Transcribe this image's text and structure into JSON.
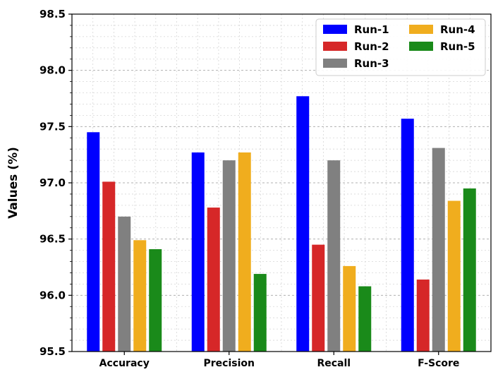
{
  "chart_data": {
    "type": "bar",
    "title": "",
    "xlabel": "",
    "ylabel": "Values (%)",
    "ylim": [
      95.5,
      98.5
    ],
    "yticks": [
      "95.5",
      "96.0",
      "96.5",
      "97.0",
      "97.5",
      "98.0",
      "98.5"
    ],
    "grid": true,
    "legend_position": "top-right",
    "categories": [
      "Accuracy",
      "Precision",
      "Recall",
      "F-Score"
    ],
    "series": [
      {
        "name": "Run-1",
        "color": "#0000ff",
        "values": [
          97.45,
          97.27,
          97.77,
          97.57
        ]
      },
      {
        "name": "Run-2",
        "color": "#d62728",
        "values": [
          97.01,
          96.78,
          96.45,
          96.14
        ]
      },
      {
        "name": "Run-3",
        "color": "#808080",
        "values": [
          96.7,
          97.2,
          97.2,
          97.31
        ]
      },
      {
        "name": "Run-4",
        "color": "#f0ad1e",
        "values": [
          96.49,
          97.27,
          96.26,
          96.84
        ]
      },
      {
        "name": "Run-5",
        "color": "#1a8a1a",
        "values": [
          96.41,
          96.19,
          96.08,
          96.95
        ]
      }
    ]
  }
}
